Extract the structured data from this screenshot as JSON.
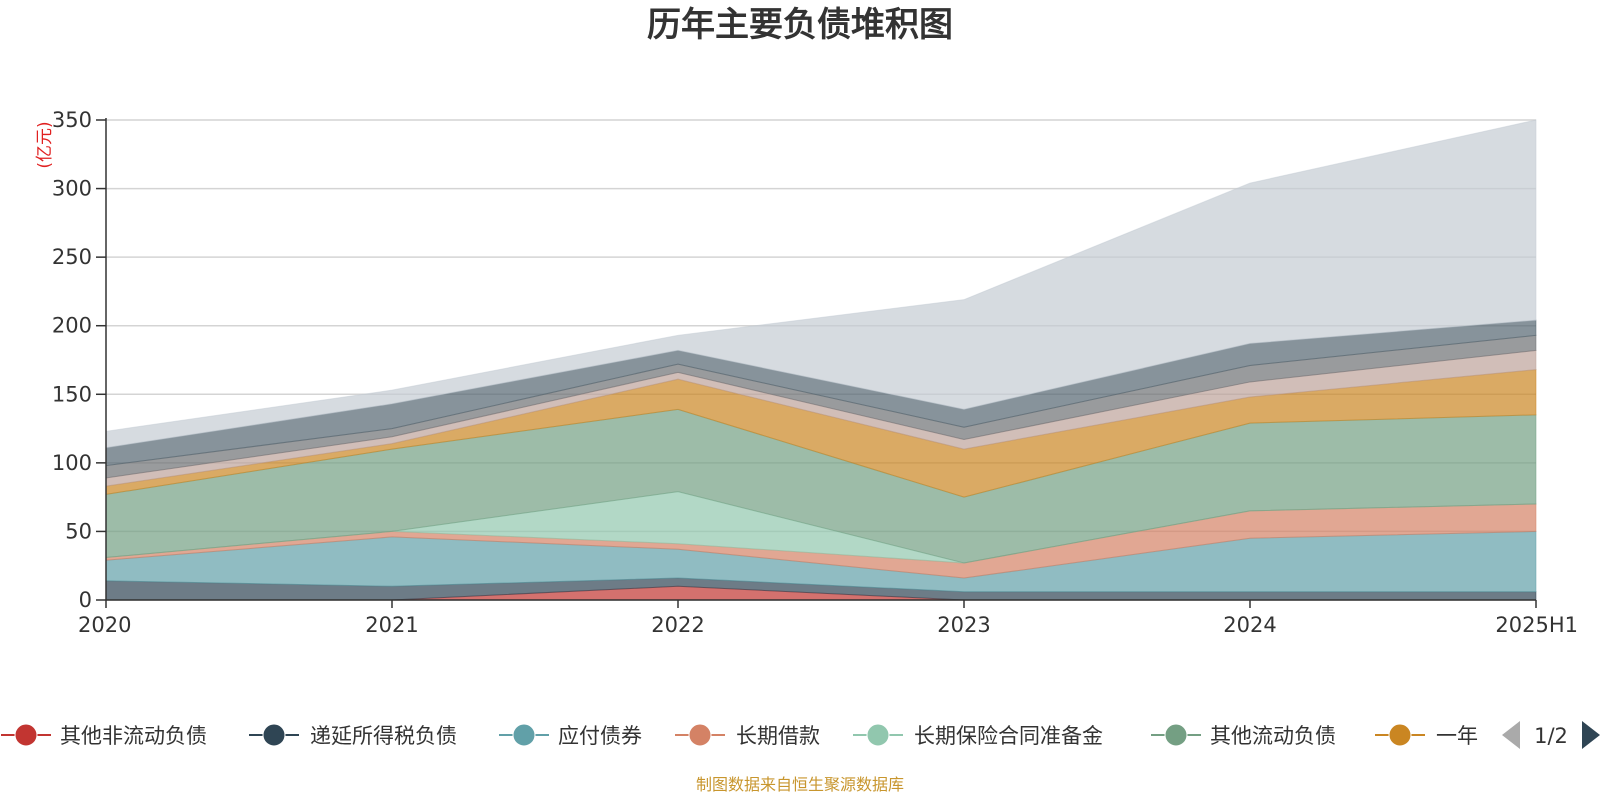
{
  "chart_data": {
    "type": "area",
    "stacked": true,
    "title": "历年主要负债堆积图",
    "unit_label": "(亿元)",
    "categories": [
      "2020",
      "2021",
      "2022",
      "2023",
      "2024",
      "2025H1"
    ],
    "ylim": [
      0,
      350
    ],
    "yticks": [
      0,
      50,
      100,
      150,
      200,
      250,
      300,
      350
    ],
    "grid": true,
    "legend_position": "bottom",
    "legend_page": "1/2",
    "source_note": "制图数据来自恒生聚源数据库",
    "series": [
      {
        "name": "其他非流动负债",
        "color": "#c23531",
        "values": [
          0,
          0,
          10,
          0,
          0,
          0
        ],
        "legend": true
      },
      {
        "name": "递延所得税负债",
        "color": "#2f4554",
        "values": [
          14,
          10,
          6,
          6,
          6,
          6
        ],
        "legend": true
      },
      {
        "name": "应付债券",
        "color": "#61a0a8",
        "values": [
          15,
          36,
          21,
          10,
          39,
          44
        ],
        "legend": true
      },
      {
        "name": "长期借款",
        "color": "#d48265",
        "values": [
          2,
          4,
          4,
          11,
          20,
          20
        ],
        "legend": true
      },
      {
        "name": "长期保险合同准备金",
        "color": "#91c7ae",
        "values": [
          0,
          0,
          38,
          0,
          0,
          0
        ],
        "legend": true
      },
      {
        "name": "其他流动负债",
        "color": "#749f83",
        "values": [
          46,
          60,
          60,
          48,
          64,
          65
        ],
        "legend": true
      },
      {
        "name": "一年",
        "color": "#ca8622",
        "values": [
          6,
          4,
          22,
          35,
          19,
          33
        ],
        "legend": true
      },
      {
        "name": "",
        "color": "#bda29a",
        "values": [
          6,
          5,
          5,
          7,
          11,
          14
        ],
        "legend": false
      },
      {
        "name": "",
        "color": "#6e7074",
        "values": [
          9,
          6,
          6,
          9,
          12,
          11
        ],
        "legend": false
      },
      {
        "name": "",
        "color": "#546570",
        "values": [
          13,
          18,
          10,
          13,
          16,
          11
        ],
        "legend": false
      },
      {
        "name": "",
        "color": "#c4ccd3",
        "values": [
          12,
          10,
          11,
          80,
          117,
          146
        ],
        "legend": false
      }
    ]
  }
}
